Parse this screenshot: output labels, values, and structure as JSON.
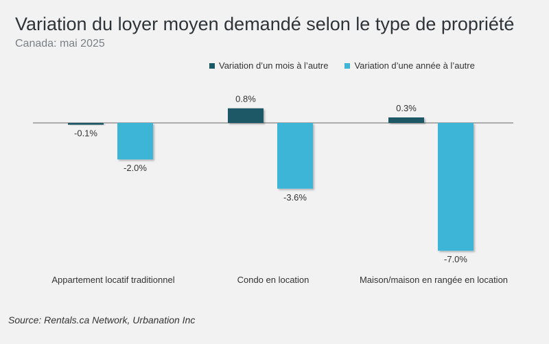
{
  "chart_data": {
    "type": "bar",
    "title": "Variation du loyer moyen demandé selon le type de propriété",
    "subtitle": "Canada: mai 2025",
    "categories": [
      "Appartement locatif traditionnel",
      "Condo en location",
      "Maison/maison en rangée en location"
    ],
    "series": [
      {
        "name": "Variation d’un mois à l’autre",
        "values": [
          -0.1,
          0.8,
          0.3
        ],
        "labels": [
          "-0.1%",
          "0.8%",
          "0.3%"
        ],
        "color": "#1b5866"
      },
      {
        "name": "Variation d’une année à l’autre",
        "values": [
          -2.0,
          -3.6,
          -7.0
        ],
        "labels": [
          "-2.0%",
          "-3.6%",
          "-7.0%"
        ],
        "color": "#3db5d6"
      }
    ],
    "ylim": [
      -7.0,
      0.8
    ],
    "grid": false,
    "legend_position": "top"
  },
  "source": "Source: Rentals.ca Network, Urbanation Inc"
}
